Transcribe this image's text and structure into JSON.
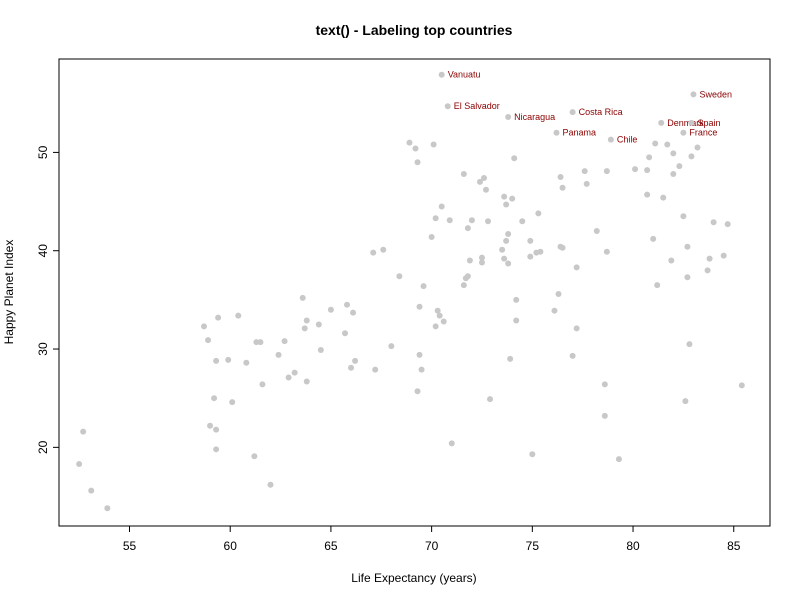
{
  "chart_data": {
    "type": "scatter",
    "title": "text() - Labeling top countries",
    "xlabel": "Life Expectancy (years)",
    "ylabel": "Happy Planet Index",
    "xlim": [
      51.5,
      86.8
    ],
    "ylim": [
      12.0,
      59.5
    ],
    "xticks": [
      55,
      60,
      65,
      70,
      75,
      80,
      85
    ],
    "yticks": [
      20,
      30,
      40,
      50
    ],
    "grid": false,
    "point_color": "#c8c8c8",
    "label_color": "#8b0000",
    "points": [
      [
        52.5,
        18.3
      ],
      [
        52.7,
        21.6
      ],
      [
        53.1,
        15.6
      ],
      [
        53.9,
        13.8
      ],
      [
        58.7,
        32.3
      ],
      [
        58.9,
        30.9
      ],
      [
        59.0,
        22.2
      ],
      [
        59.2,
        25.0
      ],
      [
        59.3,
        28.8
      ],
      [
        59.3,
        21.8
      ],
      [
        59.3,
        19.8
      ],
      [
        59.4,
        33.2
      ],
      [
        59.9,
        28.9
      ],
      [
        60.1,
        24.6
      ],
      [
        60.4,
        33.4
      ],
      [
        60.8,
        28.6
      ],
      [
        61.2,
        19.1
      ],
      [
        61.3,
        30.7
      ],
      [
        61.5,
        30.7
      ],
      [
        61.6,
        26.4
      ],
      [
        62.0,
        16.2
      ],
      [
        62.4,
        29.4
      ],
      [
        62.7,
        30.8
      ],
      [
        62.9,
        27.1
      ],
      [
        63.2,
        27.6
      ],
      [
        63.6,
        35.2
      ],
      [
        63.7,
        32.1
      ],
      [
        63.8,
        32.9
      ],
      [
        63.8,
        26.7
      ],
      [
        64.4,
        32.5
      ],
      [
        64.5,
        29.9
      ],
      [
        65.0,
        34.0
      ],
      [
        65.7,
        31.6
      ],
      [
        65.8,
        34.5
      ],
      [
        66.0,
        28.1
      ],
      [
        66.1,
        33.7
      ],
      [
        66.2,
        28.8
      ],
      [
        67.1,
        39.8
      ],
      [
        67.2,
        27.9
      ],
      [
        67.6,
        40.1
      ],
      [
        68.0,
        30.3
      ],
      [
        68.4,
        37.4
      ],
      [
        68.9,
        51.0
      ],
      [
        69.2,
        50.4
      ],
      [
        69.3,
        49.0
      ],
      [
        69.3,
        25.7
      ],
      [
        69.4,
        34.3
      ],
      [
        69.4,
        29.4
      ],
      [
        69.5,
        27.9
      ],
      [
        69.6,
        36.4
      ],
      [
        70.0,
        41.4
      ],
      [
        70.1,
        50.8
      ],
      [
        70.2,
        32.3
      ],
      [
        70.2,
        43.3
      ],
      [
        70.3,
        33.9
      ],
      [
        70.4,
        33.4
      ],
      [
        70.5,
        44.5
      ],
      [
        70.6,
        32.8
      ],
      [
        70.9,
        43.1
      ],
      [
        71.0,
        20.4
      ],
      [
        71.6,
        47.8
      ],
      [
        71.6,
        36.5
      ],
      [
        71.7,
        37.2
      ],
      [
        71.8,
        37.4
      ],
      [
        71.8,
        42.3
      ],
      [
        71.9,
        39.0
      ],
      [
        72.0,
        43.1
      ],
      [
        72.4,
        47.0
      ],
      [
        72.5,
        38.8
      ],
      [
        72.5,
        39.3
      ],
      [
        72.6,
        47.4
      ],
      [
        72.7,
        46.2
      ],
      [
        72.8,
        43.0
      ],
      [
        72.9,
        24.9
      ],
      [
        73.5,
        40.1
      ],
      [
        73.6,
        45.5
      ],
      [
        73.6,
        39.2
      ],
      [
        73.7,
        44.7
      ],
      [
        73.7,
        41.0
      ],
      [
        73.8,
        38.7
      ],
      [
        73.8,
        41.7
      ],
      [
        73.9,
        29.0
      ],
      [
        74.0,
        45.3
      ],
      [
        74.1,
        49.4
      ],
      [
        74.2,
        35.0
      ],
      [
        74.2,
        32.9
      ],
      [
        74.5,
        43.0
      ],
      [
        74.9,
        41.0
      ],
      [
        74.9,
        39.4
      ],
      [
        75.0,
        19.3
      ],
      [
        75.2,
        39.8
      ],
      [
        75.3,
        43.8
      ],
      [
        75.4,
        39.9
      ],
      [
        76.1,
        33.9
      ],
      [
        76.3,
        35.6
      ],
      [
        76.4,
        40.4
      ],
      [
        76.4,
        47.5
      ],
      [
        76.5,
        46.4
      ],
      [
        76.5,
        40.3
      ],
      [
        77.0,
        29.3
      ],
      [
        77.2,
        38.3
      ],
      [
        77.2,
        32.1
      ],
      [
        77.6,
        48.1
      ],
      [
        77.7,
        46.8
      ],
      [
        78.2,
        42.0
      ],
      [
        78.6,
        26.4
      ],
      [
        78.6,
        23.2
      ],
      [
        78.7,
        48.1
      ],
      [
        78.7,
        39.9
      ],
      [
        79.3,
        18.8
      ],
      [
        80.1,
        48.3
      ],
      [
        80.7,
        48.2
      ],
      [
        80.7,
        45.7
      ],
      [
        80.8,
        49.5
      ],
      [
        81.0,
        41.2
      ],
      [
        81.1,
        50.9
      ],
      [
        81.2,
        36.5
      ],
      [
        81.5,
        45.4
      ],
      [
        81.7,
        50.8
      ],
      [
        81.9,
        39.0
      ],
      [
        82.0,
        47.8
      ],
      [
        82.0,
        49.9
      ],
      [
        82.3,
        48.6
      ],
      [
        82.5,
        43.5
      ],
      [
        82.6,
        24.7
      ],
      [
        82.7,
        37.3
      ],
      [
        82.7,
        40.4
      ],
      [
        82.8,
        30.5
      ],
      [
        82.9,
        49.6
      ],
      [
        83.2,
        50.5
      ],
      [
        83.7,
        38.0
      ],
      [
        83.8,
        39.2
      ],
      [
        84.0,
        42.9
      ],
      [
        84.5,
        39.5
      ],
      [
        84.7,
        42.7
      ],
      [
        85.4,
        26.3
      ]
    ],
    "labeled_points": [
      {
        "label": "Vanuatu",
        "x": 70.5,
        "y": 57.9
      },
      {
        "label": "El Salvador",
        "x": 70.8,
        "y": 54.7
      },
      {
        "label": "Nicaragua",
        "x": 73.8,
        "y": 53.6
      },
      {
        "label": "Costa Rica",
        "x": 77.0,
        "y": 54.1
      },
      {
        "label": "Panama",
        "x": 76.2,
        "y": 52.0
      },
      {
        "label": "Chile",
        "x": 78.9,
        "y": 51.3
      },
      {
        "label": "Sweden",
        "x": 83.0,
        "y": 55.9
      },
      {
        "label": "Denmark",
        "x": 81.4,
        "y": 53.0
      },
      {
        "label": "Spain",
        "x": 82.9,
        "y": 53.0
      },
      {
        "label": "France",
        "x": 82.5,
        "y": 52.0
      }
    ]
  }
}
